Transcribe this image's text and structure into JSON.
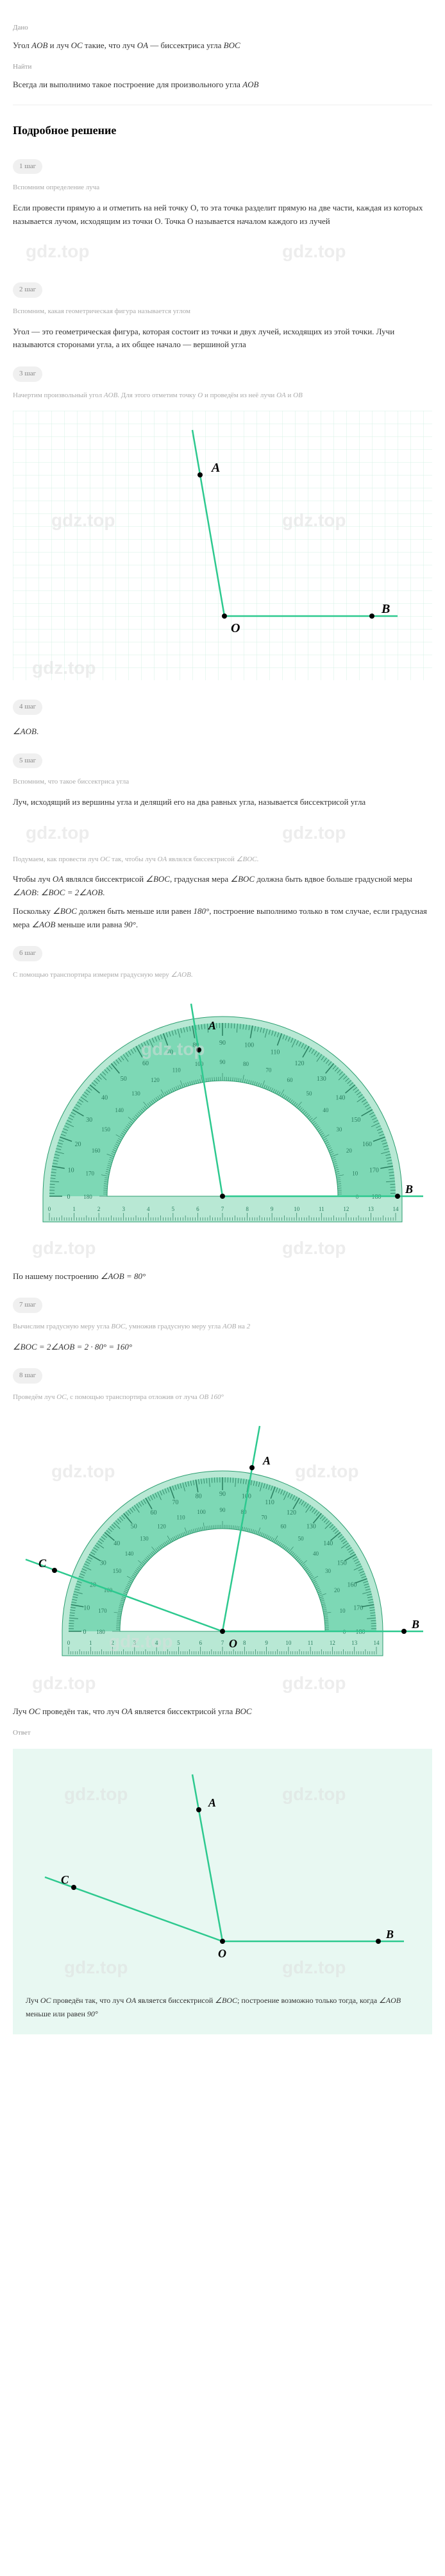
{
  "labels": {
    "given": "Дано",
    "find": "Найти",
    "answer_label": "Ответ",
    "solution_heading": "Подробное решение"
  },
  "given_text": "Угол AOB и луч OC такие, что луч OA — биссектриса угла BOC",
  "find_text": "Всегда ли выполнимо такое построение для произвольного угла AOB",
  "steps": [
    {
      "badge": "1 шаг",
      "desc": "Вспомним определение луча",
      "text": "Если провести прямую a и отметить на ней точку O, то эта точка разделит прямую на две части, каждая из которых называется лучом, исходящим из точки O. Точка O называется началом каждого из лучей"
    },
    {
      "badge": "2 шаг",
      "desc": "Вспомним, какая геометрическая фигура называется углом",
      "text": "Угол — это геометрическая фигура, которая состоит из точки и двух лучей, исходящих из этой точки. Лучи называются сторонами угла, а их общее начало — вершиной угла"
    },
    {
      "badge": "3 шаг",
      "desc": "Начертим произвольный угол AOB. Для этого отметим точку O и проведём из неё лучи OA и OB",
      "text": ""
    },
    {
      "badge": "4 шаг",
      "desc": "∠AOB.",
      "text": ""
    },
    {
      "badge": "5 шаг",
      "desc": "Вспомним, что такое биссектриса угла",
      "text": "Луч, исходящий из вершины угла и делящий его на два равных угла, называется биссектрисой угла"
    }
  ],
  "step5b_desc": "Подумаем, как провести луч OC так, чтобы луч OA являлся биссектрисой ∠BOC.",
  "step5b_text1": "Чтобы луч OA являлся биссектрисой ∠BOC, градусная мера ∠BOC должна быть вдвое больше градусной меры ∠AOB: ∠BOC = 2∠AOB.",
  "step5b_text2": "Поскольку ∠BOC должен быть меньше или равен 180°, построение выполнимо только в том случае, если градусная мера ∠AOB меньше или равна 90°.",
  "step6": {
    "badge": "6 шаг",
    "desc": "С помощью транспортира измерим градусную меру ∠AOB.",
    "result": "По нашему построению ∠AOB = 80°"
  },
  "step7": {
    "badge": "7 шаг",
    "desc": "Вычислим градусную меру угла BOC, умножив градусную меру угла AOB на 2",
    "formula": "∠BOC = 2∠AOB = 2 · 80° = 160°"
  },
  "step8": {
    "badge": "8 шаг",
    "desc": "Проведём луч OC, с помощью транспортира отложив от луча OB 160°",
    "result": "Луч OC проведён так, что луч OA является биссектрисой угла BOC"
  },
  "answer": "Луч OC проведён так, что луч OA является биссектрисой ∠BOC; построение возможно только тогда, когда ∠AOB меньше или равен 90°",
  "watermark": "gdz.top",
  "diagram1": {
    "labels": {
      "A": "A",
      "B": "B",
      "O": "O"
    },
    "colors": {
      "grid": "#d4f0e6",
      "line": "#2dc98f",
      "point": "#000",
      "text": "#000"
    },
    "angle_deg": 80
  },
  "protractor": {
    "colors": {
      "arc_fill": "#7dd8b5",
      "arc_stroke": "#2dc98f",
      "ruler": "#b8e8d4",
      "tick": "#2a9d6f",
      "label": "#2a7d5f",
      "line": "#2dc98f"
    },
    "ticks_major": [
      0,
      10,
      20,
      30,
      40,
      50,
      60,
      70,
      80,
      90,
      100,
      110,
      120,
      130,
      140,
      150,
      160,
      170,
      180
    ]
  },
  "answer_diagram": {
    "colors": {
      "bg": "#e8f8f2",
      "line": "#2dc98f"
    }
  }
}
